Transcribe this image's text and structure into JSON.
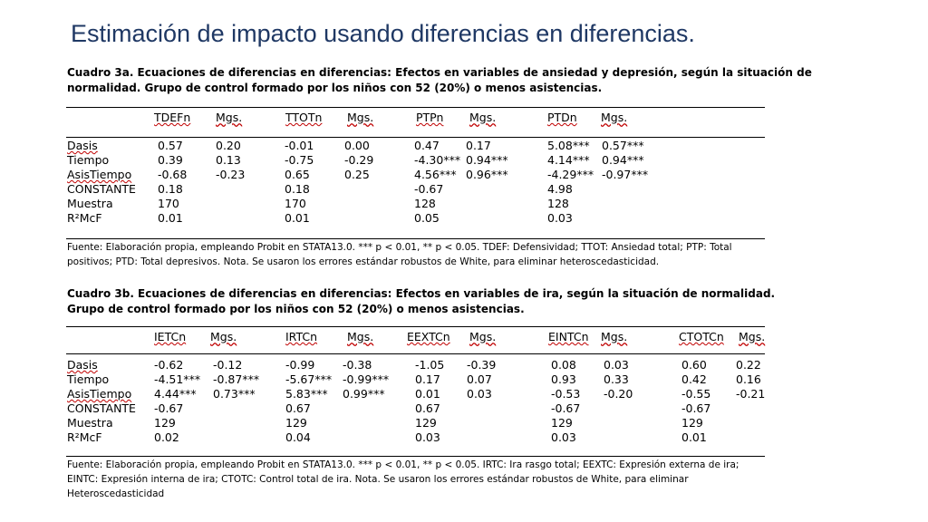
{
  "title": "Estimación de impacto usando diferencias en diferencias.",
  "table_a": {
    "caption_line1": "Cuadro 3a. Ecuaciones de diferencias en diferencias: Efectos en variables de ansiedad y depresión, según la situación de",
    "caption_line2": "normalidad. Grupo de control formado por los niños con 52 (20%) o menos asistencias.",
    "headers": [
      "TDEFn",
      "Mgs.",
      "TTOTn",
      "Mgs.",
      "PTPn",
      "Mgs.",
      "PTDn",
      "Mgs."
    ],
    "row_labels": [
      "Dasis",
      "Tiempo",
      "AsisTiempo",
      "CONSTANTE",
      "Muestra",
      "R²McF"
    ],
    "rows": [
      [
        "0.57",
        "0.20",
        "-0.01",
        "0.00",
        "0.47",
        "0.17",
        "5.08***",
        "0.57***"
      ],
      [
        "0.39",
        "0.13",
        "-0.75",
        "-0.29",
        "-4.30***",
        "0.94***",
        "4.14***",
        "0.94***"
      ],
      [
        "-0.68",
        "-0.23",
        "0.65",
        "0.25",
        "4.56***",
        "0.96***",
        "-4.29***",
        "-0.97***"
      ],
      [
        "0.18",
        "",
        "0.18",
        "",
        "-0.67",
        "",
        "4.98",
        ""
      ],
      [
        "170",
        "",
        "170",
        "",
        "128",
        "",
        "128",
        ""
      ],
      [
        "0.01",
        "",
        "0.01",
        "",
        "0.05",
        "",
        "0.03",
        ""
      ]
    ],
    "footnote_line1": "Fuente: Elaboración propia, empleando Probit en STATA13.0. *** p < 0.01, ** p < 0.05. TDEF: Defensividad; TTOT: Ansiedad total; PTP: Total",
    "footnote_line2": "positivos; PTD: Total depresivos. Nota. Se usaron los errores estándar robustos de White, para eliminar heteroscedasticidad."
  },
  "table_b": {
    "caption_line1": "Cuadro 3b. Ecuaciones de diferencias en diferencias: Efectos en variables de ira, según la situación de normalidad.",
    "caption_line2": "Grupo de control formado por los niños con 52 (20%) o menos asistencias.",
    "headers": [
      "IETCn",
      "Mgs.",
      "IRTCn",
      "Mgs.",
      "EEXTCn",
      "Mgs.",
      "EINTCn",
      "Mgs.",
      "CTOTCn",
      "Mgs."
    ],
    "row_labels": [
      "Dasis",
      "Tiempo",
      "AsisTiempo",
      "CONSTANTE",
      "Muestra",
      "R²McF"
    ],
    "rows": [
      [
        "-0.62",
        "-0.12",
        "-0.99",
        "-0.38",
        "-1.05",
        "-0.39",
        "0.08",
        "0.03",
        "0.60",
        "0.22"
      ],
      [
        "-4.51***",
        "-0.87***",
        "-5.67***",
        "-0.99***",
        "0.17",
        "0.07",
        "0.93",
        "0.33",
        "0.42",
        "0.16"
      ],
      [
        "4.44***",
        "0.73***",
        "5.83***",
        "0.99***",
        "0.01",
        "0.03",
        "-0.53",
        "-0.20",
        "-0.55",
        "-0.21"
      ],
      [
        "-0.67",
        "",
        "0.67",
        "",
        "0.67",
        "",
        "-0.67",
        "",
        "-0.67",
        ""
      ],
      [
        "129",
        "",
        "129",
        "",
        "129",
        "",
        "129",
        "",
        "129",
        ""
      ],
      [
        "0.02",
        "",
        "0.04",
        "",
        "0.03",
        "",
        "0.03",
        "",
        "0.01",
        ""
      ]
    ],
    "footnote_line1": "Fuente: Elaboración propia, empleando Probit en STATA13.0. *** p < 0.01, ** p < 0.05. IRTC: Ira rasgo total; EEXTC: Expresión externa de ira;",
    "footnote_line2": "EINTC: Expresión interna de ira; CTOTC: Control total de ira. Nota. Se usaron los errores estándar robustos de White, para eliminar",
    "footnote_line3": "Heteroscedasticidad"
  }
}
